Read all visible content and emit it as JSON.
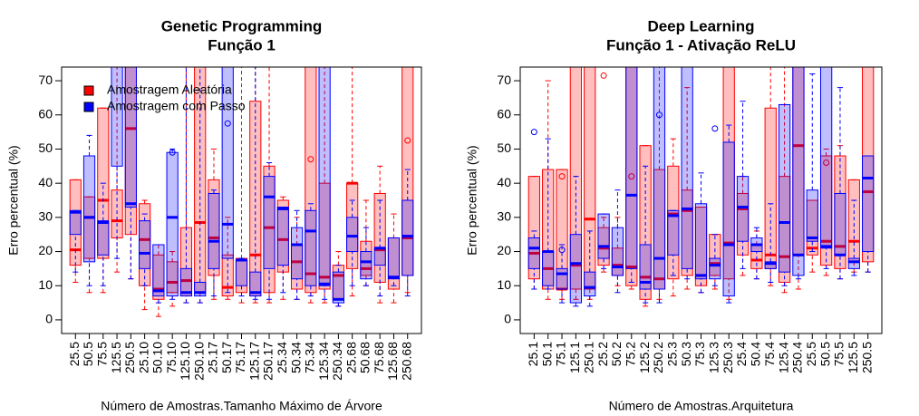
{
  "chart_data": [
    {
      "type": "box",
      "title": "Genetic Programming",
      "subtitle": "Função 1",
      "x_label": "Número de Amostras.Tamanho Máximo de Árvore",
      "y_label": "Erro percentual (%)",
      "ylim": [
        -4,
        74
      ],
      "yticks": [
        0,
        10,
        20,
        30,
        40,
        50,
        60,
        70
      ],
      "legend": "top-left",
      "categories": [
        "25.5",
        "50.5",
        "75.5",
        "125.5",
        "250.5",
        "25.10",
        "50.10",
        "75.10",
        "125.10",
        "250.10",
        "25.17",
        "50.17",
        "75.17",
        "125.17",
        "250.17",
        "25.34",
        "50.34",
        "75.34",
        "125.34",
        "250.34",
        "25.68",
        "50.68",
        "75.68",
        "125.68",
        "250.68"
      ],
      "series": [
        {
          "name": "Amostragem Aleatória",
          "color": "#ff0000",
          "boxes": [
            [
              11,
              16,
              20.5,
              41,
              41
            ],
            [
              8,
              18,
              30,
              36,
              36
            ],
            [
              8,
              18,
              35,
              62,
              62
            ],
            [
              14,
              24,
              29,
              38,
              90
            ],
            [
              12,
              25,
              56,
              90,
              90
            ],
            [
              3,
              10,
              23.5,
              34,
              35
            ],
            [
              1,
              6,
              9,
              19,
              22
            ],
            [
              4,
              8,
              11,
              17,
              20
            ],
            [
              5,
              7,
              11.5,
              27,
              90
            ],
            [
              5,
              8,
              28.5,
              90,
              90
            ],
            [
              6,
              13,
              24,
              41,
              50
            ],
            [
              6,
              7,
              9.5,
              19,
              30
            ],
            [
              5,
              8,
              17.5,
              18,
              90
            ],
            [
              5,
              7,
              19,
              64,
              90
            ],
            [
              5,
              8,
              27,
              45,
              90
            ],
            [
              6,
              14,
              23.5,
              35,
              36
            ],
            [
              6,
              9,
              17,
              22,
              30
            ],
            [
              5,
              8,
              13.5,
              90,
              90
            ],
            [
              5,
              9,
              12.5,
              40,
              90
            ],
            [
              4,
              6,
              13,
              16,
              20
            ],
            [
              7,
              15,
              40,
              40,
              90
            ],
            [
              10,
              13,
              15,
              23,
              35
            ],
            [
              5,
              11,
              20.5,
              37,
              45
            ],
            [
              5,
              9,
              12.5,
              24,
              31
            ],
            [
              8,
              13,
              24,
              90,
              90
            ]
          ],
          "outliers": [
            {
              "category": 17,
              "value": 47
            },
            {
              "category": 24,
              "value": 52.5
            }
          ]
        },
        {
          "name": "Amostragem com Passo",
          "color": "#0000ff",
          "boxes": [
            [
              14,
              25,
              31.5,
              32,
              32
            ],
            [
              10,
              17,
              30,
              48,
              54
            ],
            [
              10,
              19,
              28.5,
              29,
              40
            ],
            [
              18,
              45,
              90,
              90,
              90
            ],
            [
              12,
              33,
              34,
              90,
              90
            ],
            [
              10,
              15,
              19.5,
              29,
              31
            ],
            [
              5,
              7,
              8.5,
              22,
              22
            ],
            [
              6,
              7,
              30,
              49,
              50
            ],
            [
              5,
              7,
              8,
              15,
              90
            ],
            [
              5,
              7,
              8,
              11,
              90
            ],
            [
              7,
              15,
              23,
              37,
              38
            ],
            [
              8,
              18,
              28,
              90,
              90
            ],
            [
              7,
              10,
              17.5,
              17.5,
              18
            ],
            [
              6,
              7,
              8,
              14,
              90
            ],
            [
              6,
              15,
              36,
              42,
              46
            ],
            [
              8,
              16,
              32.5,
              33,
              33
            ],
            [
              6,
              12,
              22,
              27,
              32
            ],
            [
              7,
              10,
              26,
              32,
              34
            ],
            [
              6,
              10,
              10.5,
              90,
              90
            ],
            [
              4,
              5,
              6,
              14,
              16
            ],
            [
              10,
              20,
              24.5,
              30,
              35
            ],
            [
              10,
              12,
              17,
              20,
              27
            ],
            [
              7,
              16,
              21,
              21,
              35
            ],
            [
              10,
              12,
              12.5,
              24,
              24
            ],
            [
              7,
              13,
              24.5,
              35,
              44
            ]
          ],
          "outliers": [
            {
              "category": 7,
              "value": 49
            },
            {
              "category": 11,
              "value": 57.5
            }
          ]
        }
      ]
    },
    {
      "type": "box",
      "title": "Deep Learning",
      "subtitle": "Função 1 - Ativação ReLU",
      "x_label": "Número de Amostras.Arquitetura",
      "y_label": "Erro percentual (%)",
      "ylim": [
        -4,
        74
      ],
      "yticks": [
        0,
        10,
        20,
        30,
        40,
        50,
        60,
        70
      ],
      "categories": [
        "25.1",
        "50.1",
        "75.1",
        "125.1",
        "250.1",
        "25.2",
        "50.2",
        "75.2",
        "125.2",
        "250.2",
        "25.3",
        "50.3",
        "75.3",
        "125.3",
        "250.3",
        "25.4",
        "50.4",
        "75.4",
        "125.4",
        "250.4",
        "25.5",
        "50.5",
        "75.5",
        "125.5",
        "250.5"
      ],
      "series": [
        {
          "name": "Amostragem Aleatória",
          "color": "#ff0000",
          "boxes": [
            [
              9,
              12,
              19.5,
              42,
              42
            ],
            [
              6,
              9,
              15,
              44,
              70
            ],
            [
              6,
              9,
              9,
              44,
              44
            ],
            [
              6,
              9,
              16,
              90,
              90
            ],
            [
              6,
              9,
              29.5,
              90,
              90
            ],
            [
              14,
              16,
              21,
              27,
              30
            ],
            [
              10,
              13,
              16,
              21,
              30
            ],
            [
              9,
              10,
              15.5,
              90,
              90
            ],
            [
              4,
              6,
              12.5,
              51,
              51
            ],
            [
              6,
              9,
              12,
              44,
              90
            ],
            [
              7,
              12,
              31,
              45,
              53
            ],
            [
              9,
              13,
              32,
              38,
              68
            ],
            [
              8,
              10,
              13,
              33,
              33
            ],
            [
              9,
              13,
              16.5,
              25,
              25
            ],
            [
              6,
              12,
              22.5,
              90,
              90
            ],
            [
              13,
              19,
              32.5,
              37,
              42
            ],
            [
              12,
              15,
              17.5,
              22,
              26
            ],
            [
              10,
              15,
              19,
              62,
              90
            ],
            [
              8,
              11,
              18.5,
              42,
              90
            ],
            [
              9,
              19,
              51,
              90,
              90
            ],
            [
              14,
              19,
              21,
              35,
              35
            ],
            [
              13,
              16,
              23,
              48,
              50
            ],
            [
              12,
              15,
              21.5,
              48,
              51
            ],
            [
              14,
              17,
              23,
              41,
              41
            ],
            [
              14,
              17,
              37.5,
              90,
              90
            ]
          ],
          "outliers": [
            {
              "category": 2,
              "value": 42
            },
            {
              "category": 5,
              "value": 71.5
            },
            {
              "category": 7,
              "value": 42
            },
            {
              "category": 21,
              "value": 46
            }
          ]
        },
        {
          "name": "Amostragem com Passo",
          "color": "#0000ff",
          "boxes": [
            [
              9,
              15,
              21,
              24,
              26
            ],
            [
              9,
              10,
              20,
              20,
              53
            ],
            [
              5,
              9,
              13.5,
              15,
              22
            ],
            [
              4,
              5,
              16.5,
              25,
              42
            ],
            [
              4,
              7,
              9.5,
              14,
              26
            ],
            [
              15,
              18,
              21.5,
              31,
              31
            ],
            [
              8,
              13,
              15.5,
              27,
              38
            ],
            [
              11,
              15,
              36.5,
              90,
              90
            ],
            [
              5,
              9,
              11,
              22,
              45
            ],
            [
              5,
              9,
              18,
              90,
              90
            ],
            [
              13,
              19,
              30.5,
              32,
              32
            ],
            [
              12,
              15,
              32.5,
              90,
              90
            ],
            [
              8,
              12,
              13,
              34,
              43
            ],
            [
              10,
              12,
              16,
              18,
              25
            ],
            [
              5,
              7,
              22,
              52,
              57
            ],
            [
              15,
              23,
              33,
              42,
              64
            ],
            [
              12,
              20,
              22,
              24,
              27
            ],
            [
              11,
              15,
              16.5,
              17,
              34
            ],
            [
              10,
              14,
              28.5,
              63,
              63
            ],
            [
              12,
              13,
              19,
              90,
              90
            ],
            [
              20,
              23,
              24,
              38,
              72
            ],
            [
              15,
              21,
              21.5,
              90,
              90
            ],
            [
              12,
              19,
              19,
              37,
              68
            ],
            [
              13,
              15,
              17,
              18,
              35
            ],
            [
              14,
              20,
              41.5,
              48,
              48
            ]
          ],
          "outliers": [
            {
              "category": 0,
              "value": 55
            },
            {
              "category": 2,
              "value": 20.5
            },
            {
              "category": 9,
              "value": 60
            },
            {
              "category": 13,
              "value": 56
            }
          ]
        }
      ]
    }
  ]
}
